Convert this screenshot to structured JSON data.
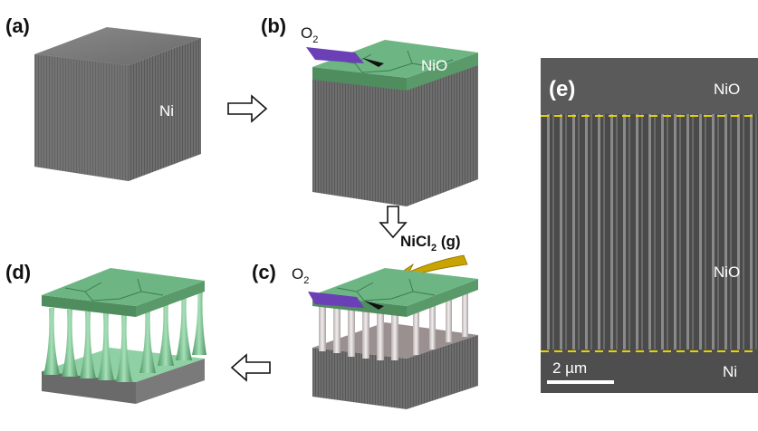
{
  "panels": {
    "a": {
      "label": "(a)",
      "material": "Ni"
    },
    "b": {
      "label": "(b)",
      "gas": "O",
      "gas_sub": "2",
      "layer": "NiO"
    },
    "c": {
      "label": "(c)",
      "gas": "O",
      "gas_sub": "2"
    },
    "d": {
      "label": "(d)"
    },
    "e": {
      "label": "(e)",
      "top_layer": "NiO",
      "middle_layer": "NiO",
      "bottom_layer": "Ni",
      "scale_bar": "2 µm"
    }
  },
  "reactant": {
    "prefix": "NiCl",
    "sub": "2",
    "suffix": " (g)"
  },
  "colors": {
    "metal": "#6f6f6f",
    "oxide": "#6db683",
    "oxygen_strip": "#6b3fb5",
    "chloride_arrow": "#c9a400",
    "boundary_dash": "#e6d200"
  },
  "icons": [
    "arrow-right-icon",
    "arrow-down-icon",
    "arrow-left-icon"
  ]
}
